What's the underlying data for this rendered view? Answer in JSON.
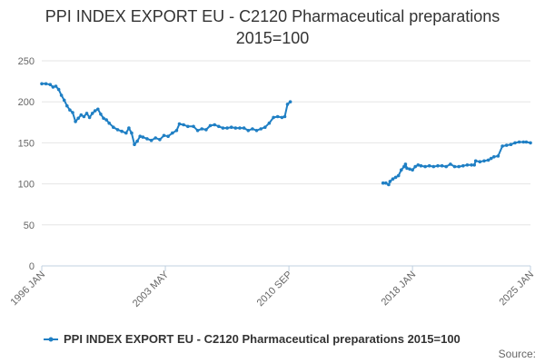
{
  "chart_data": {
    "type": "line",
    "title_lines": [
      "PPI INDEX EXPORT EU - C2120 Pharmaceutical preparations",
      "2015=100"
    ],
    "xlabel": "",
    "ylabel": "",
    "ylim": [
      0,
      250
    ],
    "y_ticks": [
      0,
      50,
      100,
      150,
      200,
      250
    ],
    "xlim": [
      "1996-01",
      "2025-01"
    ],
    "x_ticks": [
      "1996-01",
      "2003-05",
      "2010-09",
      "2018-01",
      "2025-01"
    ],
    "x_tick_labels": [
      "1996 JAN",
      "2003 MAY",
      "2010 SEP",
      "2018 JAN",
      "2025 JAN"
    ],
    "grid": "horizontal",
    "legend_position": "bottom",
    "series": [
      {
        "name": "PPI INDEX EXPORT EU - C2120 Pharmaceutical preparations 2015=100",
        "color": "#1f7fc4",
        "segments": [
          [
            [
              "1996-01",
              222
            ],
            [
              "1996-04",
              222
            ],
            [
              "1996-07",
              221
            ],
            [
              "1996-09",
              218
            ],
            [
              "1996-11",
              219
            ],
            [
              "1997-01",
              215
            ],
            [
              "1997-03",
              208
            ],
            [
              "1997-05",
              202
            ],
            [
              "1997-07",
              195
            ],
            [
              "1997-09",
              190
            ],
            [
              "1997-11",
              187
            ],
            [
              "1998-01",
              176
            ],
            [
              "1998-03",
              180
            ],
            [
              "1998-05",
              184
            ],
            [
              "1998-07",
              182
            ],
            [
              "1998-09",
              186
            ],
            [
              "1998-11",
              181
            ],
            [
              "1999-01",
              186
            ],
            [
              "1999-03",
              189
            ],
            [
              "1999-05",
              191
            ],
            [
              "1999-07",
              185
            ],
            [
              "1999-09",
              180
            ],
            [
              "1999-11",
              178
            ],
            [
              "2000-01",
              174
            ],
            [
              "2000-04",
              169
            ],
            [
              "2000-07",
              166
            ],
            [
              "2000-10",
              164
            ],
            [
              "2001-01",
              162
            ],
            [
              "2001-03",
              168
            ],
            [
              "2001-05",
              162
            ],
            [
              "2001-07",
              148
            ],
            [
              "2001-09",
              152
            ],
            [
              "2001-11",
              158
            ],
            [
              "2002-01",
              157
            ],
            [
              "2002-04",
              155
            ],
            [
              "2002-07",
              153
            ],
            [
              "2002-10",
              156
            ],
            [
              "2003-01",
              154
            ],
            [
              "2003-04",
              159
            ],
            [
              "2003-07",
              158
            ],
            [
              "2003-10",
              162
            ],
            [
              "2004-01",
              165
            ],
            [
              "2004-03",
              173
            ],
            [
              "2004-06",
              172
            ],
            [
              "2004-09",
              170
            ],
            [
              "2005-01",
              170
            ],
            [
              "2005-04",
              165
            ],
            [
              "2005-07",
              167
            ],
            [
              "2005-10",
              166
            ],
            [
              "2006-01",
              171
            ],
            [
              "2006-04",
              172
            ],
            [
              "2006-07",
              170
            ],
            [
              "2006-10",
              168
            ],
            [
              "2007-01",
              168
            ],
            [
              "2007-04",
              169
            ],
            [
              "2007-07",
              168
            ],
            [
              "2007-10",
              168
            ],
            [
              "2008-01",
              168
            ],
            [
              "2008-04",
              165
            ],
            [
              "2008-07",
              167
            ],
            [
              "2008-10",
              165
            ],
            [
              "2009-01",
              167
            ],
            [
              "2009-04",
              169
            ],
            [
              "2009-07",
              174
            ],
            [
              "2009-10",
              181
            ],
            [
              "2010-01",
              182
            ],
            [
              "2010-04",
              181
            ],
            [
              "2010-06",
              182
            ],
            [
              "2010-08",
              197
            ],
            [
              "2010-10",
              200
            ]
          ],
          [
            [
              "2016-04",
              101
            ],
            [
              "2016-06",
              101
            ],
            [
              "2016-08",
              99
            ],
            [
              "2016-09",
              103
            ],
            [
              "2016-11",
              106
            ],
            [
              "2017-01",
              108
            ],
            [
              "2017-03",
              110
            ],
            [
              "2017-05",
              117
            ],
            [
              "2017-07",
              121
            ],
            [
              "2017-08",
              124
            ],
            [
              "2017-09",
              119
            ],
            [
              "2017-11",
              118
            ],
            [
              "2018-01",
              117
            ],
            [
              "2018-03",
              121
            ],
            [
              "2018-05",
              123
            ],
            [
              "2018-07",
              122
            ],
            [
              "2018-10",
              121
            ],
            [
              "2019-01",
              122
            ],
            [
              "2019-04",
              121
            ],
            [
              "2019-07",
              122
            ],
            [
              "2019-10",
              122
            ],
            [
              "2020-01",
              121
            ],
            [
              "2020-04",
              124
            ],
            [
              "2020-07",
              121
            ],
            [
              "2020-10",
              121
            ],
            [
              "2021-01",
              122
            ],
            [
              "2021-04",
              123
            ],
            [
              "2021-07",
              123
            ],
            [
              "2021-09",
              123
            ],
            [
              "2021-10",
              128
            ],
            [
              "2022-01",
              127
            ],
            [
              "2022-04",
              128
            ],
            [
              "2022-07",
              129
            ],
            [
              "2022-09",
              131
            ],
            [
              "2022-11",
              133
            ],
            [
              "2023-02",
              134
            ],
            [
              "2023-05",
              146
            ],
            [
              "2023-08",
              147
            ],
            [
              "2023-11",
              148
            ],
            [
              "2024-02",
              150
            ],
            [
              "2024-05",
              151
            ],
            [
              "2024-08",
              151
            ],
            [
              "2024-10",
              151
            ],
            [
              "2025-01",
              150
            ]
          ]
        ]
      }
    ]
  },
  "footer": {
    "source_label": "Source:"
  }
}
